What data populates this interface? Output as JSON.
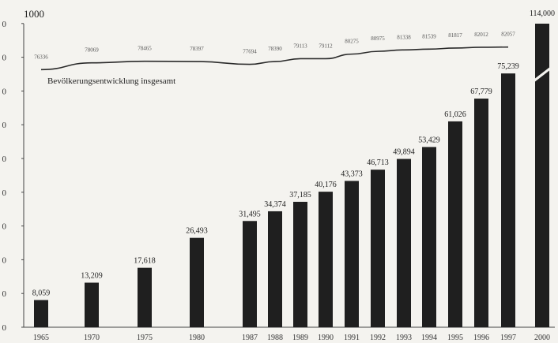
{
  "chart_data": {
    "type": "bar",
    "title": "",
    "xlabel": "",
    "ylabel": "",
    "y_top_label": "1000",
    "y_tick_fragments": [
      "0",
      "0",
      "0",
      "0",
      "0",
      "0",
      "0",
      "0",
      "0",
      "0"
    ],
    "ylim": [
      0,
      90000
    ],
    "categories": [
      "1965",
      "1970",
      "1975",
      "1980",
      "1987",
      "1988",
      "1989",
      "1990",
      "1991",
      "1992",
      "1993",
      "1994",
      "1995",
      "1996",
      "1997",
      "2000"
    ],
    "values": [
      8059,
      13209,
      17618,
      26493,
      31495,
      34374,
      37185,
      40176,
      43373,
      46713,
      49894,
      53429,
      61026,
      67779,
      75239,
      114000
    ],
    "value_labels": [
      "8,059",
      "13,209",
      "17,618",
      "26,493",
      "31,495",
      "34,374",
      "37,185",
      "40,176",
      "43,373",
      "46,713",
      "49,894",
      "53,429",
      "61,026",
      "67,779",
      "75,239",
      "114,000"
    ],
    "broken_bar_index": 15,
    "bar_color": "#1f1f1f",
    "population_line": {
      "label": "Bevölkerungsentwicklung insgesamt",
      "values": [
        76336,
        78069,
        78465,
        78397,
        77694,
        78390,
        79113,
        79112,
        80275,
        80975,
        81338,
        81539,
        81817,
        82012,
        82057
      ],
      "value_labels": [
        "76336",
        "78069",
        "78465",
        "78397",
        "77694",
        "78390",
        "79113",
        "79112",
        "80275",
        "80975",
        "81338",
        "81539",
        "81817",
        "82012",
        "82057"
      ],
      "color": "#2a2a2a"
    }
  }
}
